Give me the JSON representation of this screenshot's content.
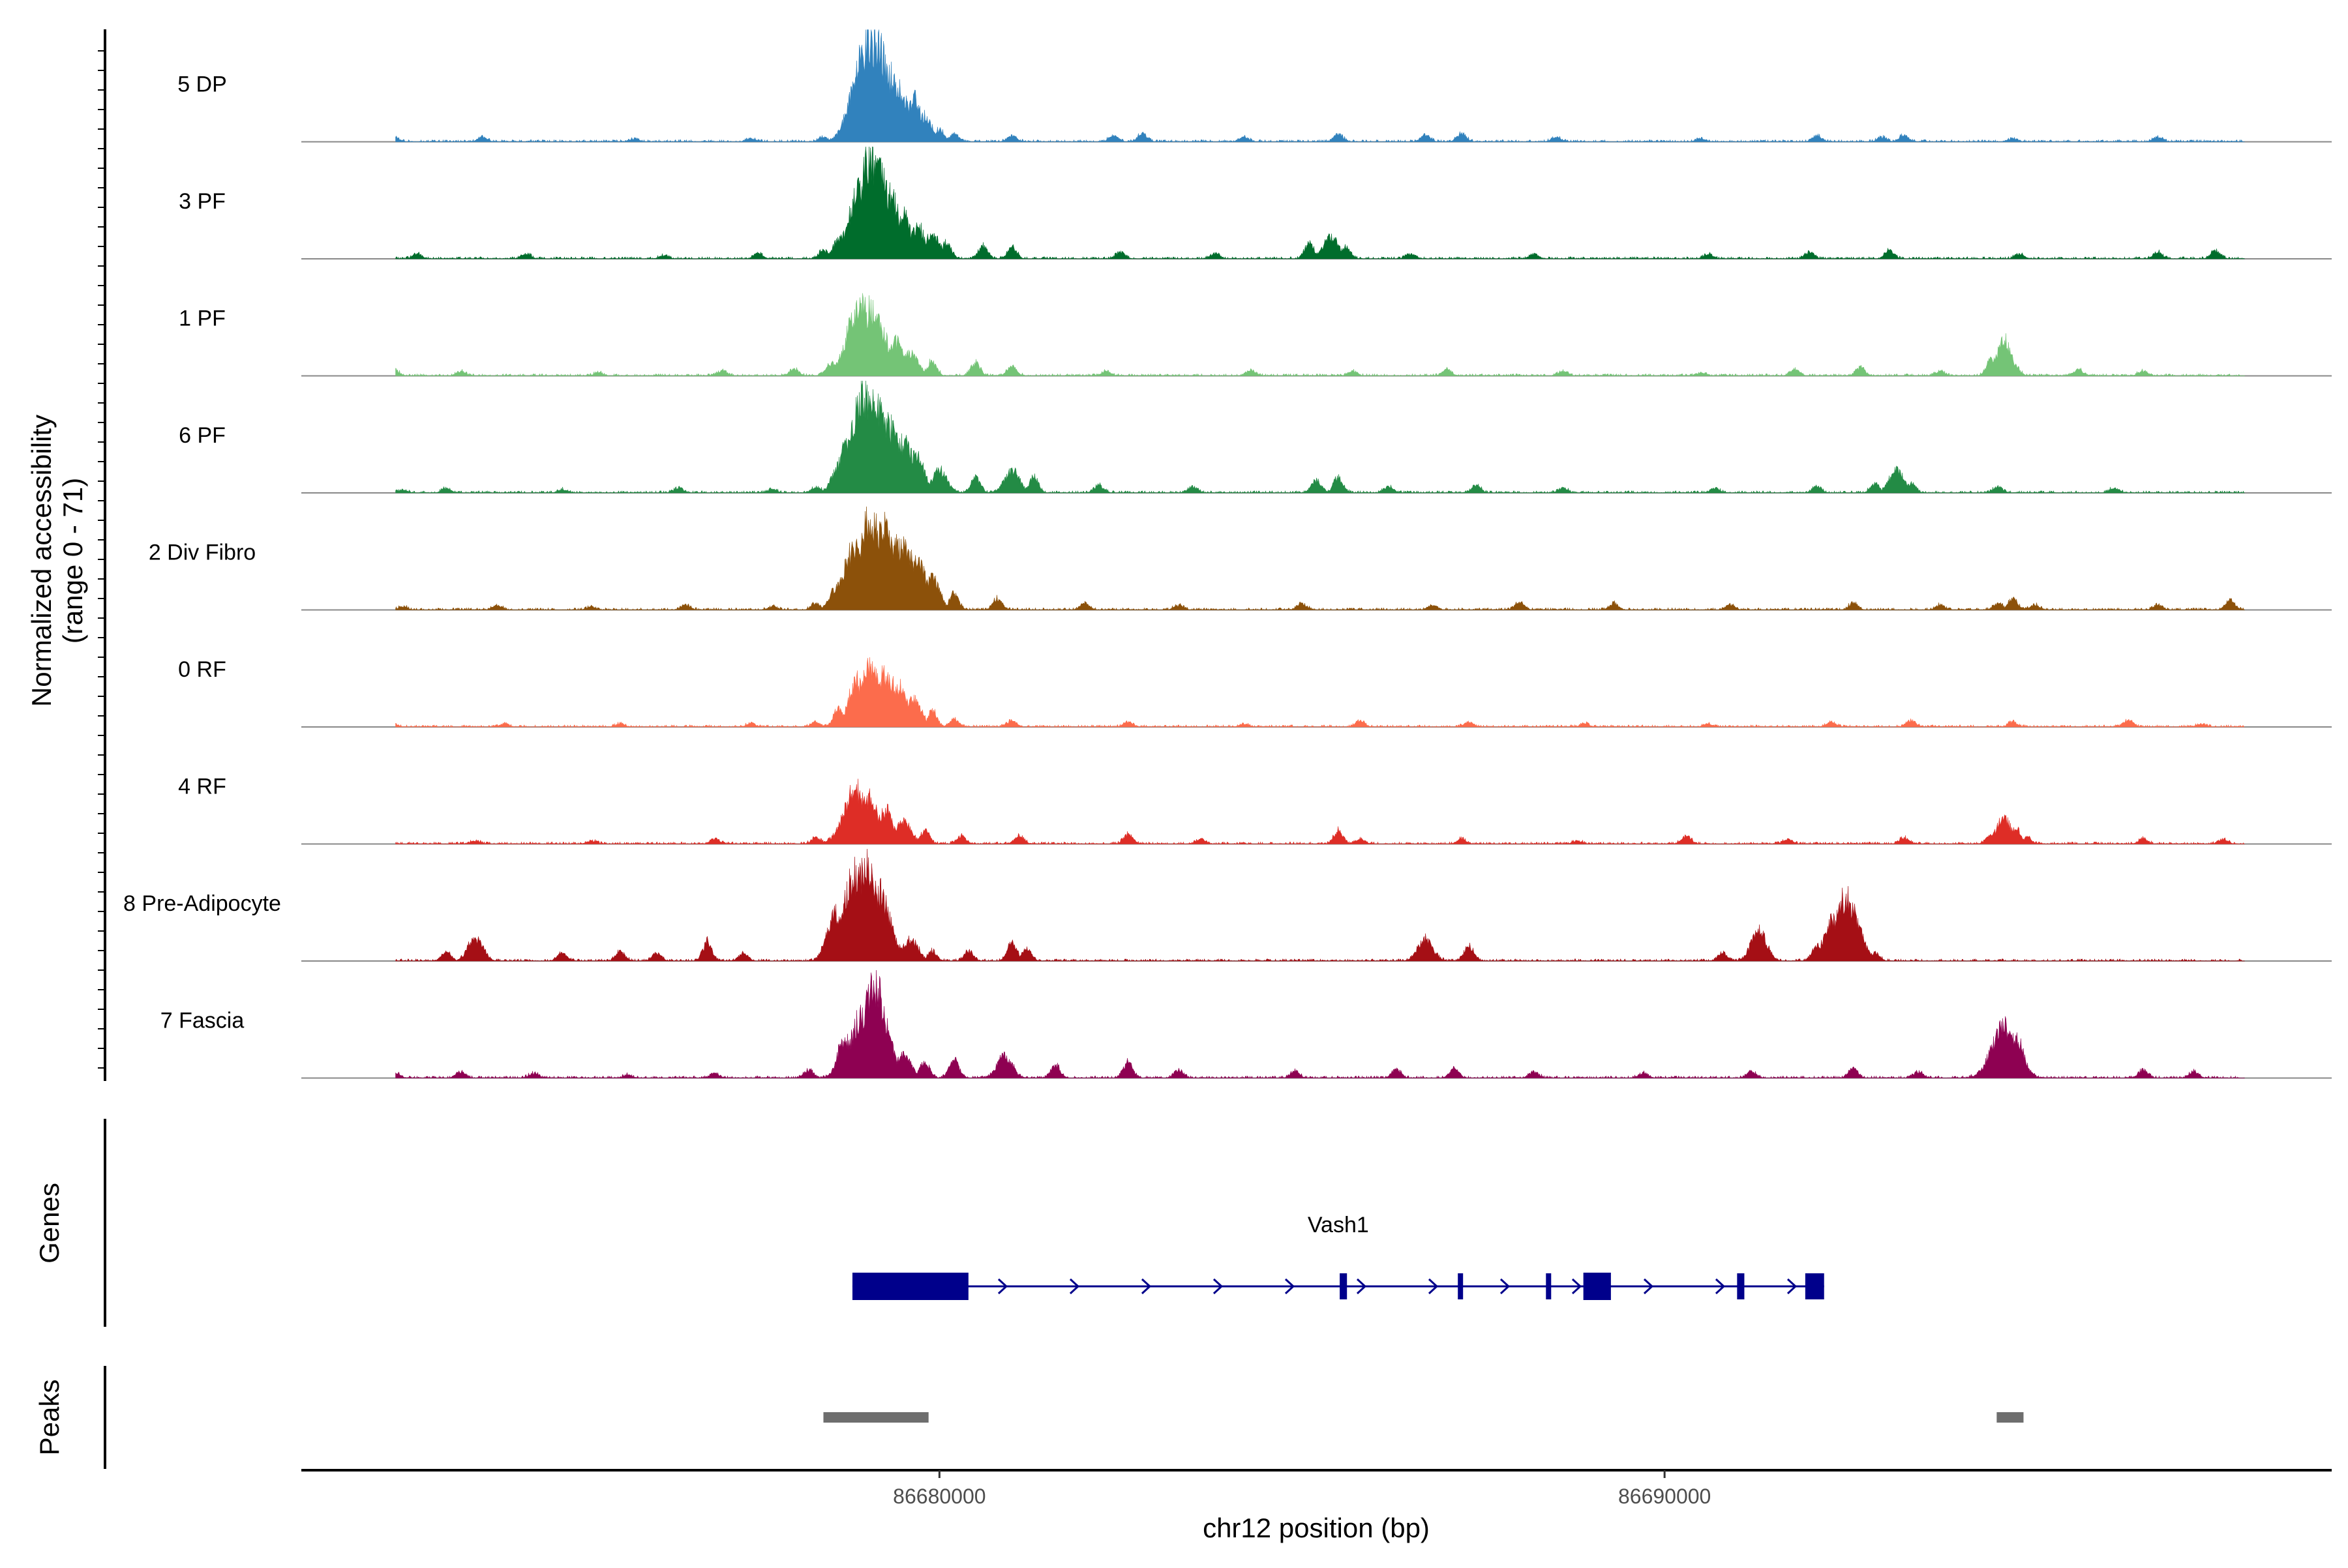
{
  "chart_data": {
    "type": "area",
    "title": "",
    "ylabel_line1": "Normalized accessibility",
    "ylabel_line2": "(range 0 - 71)",
    "ylim": [
      0,
      71
    ],
    "xlabel": "chr12 position (bp)",
    "xlim": [
      86671200,
      86699200
    ],
    "x_ticks": [
      86680000,
      86690000
    ],
    "x_tick_labels": [
      "86680000",
      "86690000"
    ],
    "series": [
      {
        "name": "5 DP",
        "color": "#3182bd",
        "points": [
          [
            86672500,
            2
          ],
          [
            86673700,
            3
          ],
          [
            86675800,
            2
          ],
          [
            86677400,
            2
          ],
          [
            86678400,
            3
          ],
          [
            86678700,
            10
          ],
          [
            86678850,
            30
          ],
          [
            86678950,
            55
          ],
          [
            86679050,
            66
          ],
          [
            86679150,
            60
          ],
          [
            86679300,
            42
          ],
          [
            86679400,
            35
          ],
          [
            86679550,
            22
          ],
          [
            86679650,
            27
          ],
          [
            86679800,
            16
          ],
          [
            86680000,
            8
          ],
          [
            86680200,
            5
          ],
          [
            86681000,
            4
          ],
          [
            86682400,
            4
          ],
          [
            86682800,
            5
          ],
          [
            86684200,
            3
          ],
          [
            86685500,
            5
          ],
          [
            86686700,
            4
          ],
          [
            86687200,
            5
          ],
          [
            86688500,
            3
          ],
          [
            86690500,
            2
          ],
          [
            86692100,
            4
          ],
          [
            86693000,
            3
          ],
          [
            86693300,
            4
          ],
          [
            86694800,
            2
          ],
          [
            86696800,
            3
          ]
        ]
      },
      {
        "name": "3 PF",
        "color": "#006d2c",
        "points": [
          [
            86672800,
            3
          ],
          [
            86674300,
            3
          ],
          [
            86676200,
            2
          ],
          [
            86677500,
            3
          ],
          [
            86678400,
            5
          ],
          [
            86678650,
            14
          ],
          [
            86678800,
            30
          ],
          [
            86678950,
            50
          ],
          [
            86679050,
            65
          ],
          [
            86679150,
            55
          ],
          [
            86679300,
            40
          ],
          [
            86679500,
            28
          ],
          [
            86679700,
            20
          ],
          [
            86679900,
            15
          ],
          [
            86680100,
            10
          ],
          [
            86680600,
            8
          ],
          [
            86681000,
            7
          ],
          [
            86682500,
            4
          ],
          [
            86683800,
            3
          ],
          [
            86685100,
            10
          ],
          [
            86685400,
            14
          ],
          [
            86685600,
            8
          ],
          [
            86686500,
            3
          ],
          [
            86688200,
            3
          ],
          [
            86690600,
            3
          ],
          [
            86692000,
            4
          ],
          [
            86693100,
            5
          ],
          [
            86694900,
            3
          ],
          [
            86696800,
            4
          ],
          [
            86697600,
            5
          ]
        ]
      },
      {
        "name": "1 PF",
        "color": "#74c476",
        "points": [
          [
            86672500,
            3
          ],
          [
            86673400,
            3
          ],
          [
            86675300,
            2
          ],
          [
            86677000,
            3
          ],
          [
            86678000,
            4
          ],
          [
            86678500,
            8
          ],
          [
            86678750,
            22
          ],
          [
            86678900,
            46
          ],
          [
            86679050,
            42
          ],
          [
            86679200,
            30
          ],
          [
            86679400,
            22
          ],
          [
            86679600,
            15
          ],
          [
            86679900,
            9
          ],
          [
            86680500,
            8
          ],
          [
            86681000,
            6
          ],
          [
            86682300,
            3
          ],
          [
            86684300,
            3
          ],
          [
            86685700,
            3
          ],
          [
            86687000,
            4
          ],
          [
            86688600,
            3
          ],
          [
            86690500,
            2
          ],
          [
            86691800,
            4
          ],
          [
            86692700,
            5
          ],
          [
            86693800,
            3
          ],
          [
            86694500,
            10
          ],
          [
            86694680,
            22
          ],
          [
            86694820,
            8
          ],
          [
            86695700,
            4
          ],
          [
            86696600,
            3
          ]
        ]
      },
      {
        "name": "6 PF",
        "color": "#238b45",
        "points": [
          [
            86672600,
            2
          ],
          [
            86673200,
            3
          ],
          [
            86674800,
            2
          ],
          [
            86676400,
            3
          ],
          [
            86677700,
            2
          ],
          [
            86678300,
            4
          ],
          [
            86678550,
            12
          ],
          [
            86678800,
            35
          ],
          [
            86678950,
            60
          ],
          [
            86679100,
            58
          ],
          [
            86679300,
            42
          ],
          [
            86679500,
            32
          ],
          [
            86679700,
            22
          ],
          [
            86680000,
            14
          ],
          [
            86680500,
            10
          ],
          [
            86681000,
            14
          ],
          [
            86681300,
            10
          ],
          [
            86682200,
            5
          ],
          [
            86683500,
            4
          ],
          [
            86685200,
            8
          ],
          [
            86685500,
            10
          ],
          [
            86686200,
            4
          ],
          [
            86687400,
            5
          ],
          [
            86688600,
            3
          ],
          [
            86690700,
            3
          ],
          [
            86692100,
            4
          ],
          [
            86692900,
            6
          ],
          [
            86693200,
            14
          ],
          [
            86693400,
            6
          ],
          [
            86694600,
            4
          ],
          [
            86696200,
            3
          ]
        ]
      },
      {
        "name": "2 Div Fibro",
        "color": "#8c510a",
        "points": [
          [
            86672600,
            2
          ],
          [
            86673900,
            3
          ],
          [
            86675200,
            2
          ],
          [
            86676500,
            3
          ],
          [
            86677700,
            2
          ],
          [
            86678300,
            4
          ],
          [
            86678600,
            15
          ],
          [
            86678850,
            40
          ],
          [
            86679050,
            57
          ],
          [
            86679250,
            55
          ],
          [
            86679450,
            42
          ],
          [
            86679650,
            32
          ],
          [
            86679900,
            20
          ],
          [
            86680200,
            10
          ],
          [
            86680800,
            7
          ],
          [
            86682000,
            4
          ],
          [
            86683300,
            3
          ],
          [
            86685000,
            4
          ],
          [
            86686800,
            3
          ],
          [
            86688000,
            5
          ],
          [
            86689300,
            4
          ],
          [
            86690900,
            3
          ],
          [
            86692600,
            4
          ],
          [
            86693800,
            3
          ],
          [
            86694600,
            4
          ],
          [
            86694800,
            7
          ],
          [
            86695100,
            3
          ],
          [
            86696800,
            3
          ],
          [
            86697800,
            6
          ]
        ]
      },
      {
        "name": "0 RF",
        "color": "#fc6c4c",
        "points": [
          [
            86672500,
            1
          ],
          [
            86674000,
            2
          ],
          [
            86675600,
            2
          ],
          [
            86677400,
            2
          ],
          [
            86678300,
            3
          ],
          [
            86678600,
            12
          ],
          [
            86678850,
            30
          ],
          [
            86679050,
            37
          ],
          [
            86679250,
            33
          ],
          [
            86679450,
            26
          ],
          [
            86679650,
            18
          ],
          [
            86679900,
            10
          ],
          [
            86680200,
            5
          ],
          [
            86681000,
            4
          ],
          [
            86682600,
            3
          ],
          [
            86684200,
            2
          ],
          [
            86685800,
            4
          ],
          [
            86687300,
            3
          ],
          [
            86688900,
            2
          ],
          [
            86690600,
            2
          ],
          [
            86692300,
            3
          ],
          [
            86693400,
            4
          ],
          [
            86694800,
            3
          ],
          [
            86696400,
            4
          ],
          [
            86697400,
            2
          ]
        ]
      },
      {
        "name": "4 RF",
        "color": "#de2d26",
        "points": [
          [
            86673600,
            2
          ],
          [
            86675200,
            2
          ],
          [
            86676900,
            3
          ],
          [
            86678300,
            4
          ],
          [
            86678650,
            12
          ],
          [
            86678850,
            34
          ],
          [
            86679050,
            30
          ],
          [
            86679250,
            22
          ],
          [
            86679500,
            15
          ],
          [
            86679800,
            9
          ],
          [
            86680300,
            5
          ],
          [
            86681100,
            5
          ],
          [
            86682600,
            6
          ],
          [
            86683600,
            3
          ],
          [
            86685500,
            8
          ],
          [
            86685800,
            3
          ],
          [
            86687200,
            3
          ],
          [
            86688800,
            2
          ],
          [
            86690300,
            5
          ],
          [
            86691700,
            3
          ],
          [
            86693300,
            4
          ],
          [
            86694500,
            6
          ],
          [
            86694680,
            16
          ],
          [
            86694850,
            10
          ],
          [
            86695000,
            4
          ],
          [
            86696600,
            3
          ],
          [
            86697700,
            3
          ]
        ]
      },
      {
        "name": "8 Pre-Adipocyte",
        "color": "#a50f15",
        "points": [
          [
            86673200,
            6
          ],
          [
            86673600,
            14
          ],
          [
            86674800,
            5
          ],
          [
            86675600,
            6
          ],
          [
            86676100,
            5
          ],
          [
            86676800,
            12
          ],
          [
            86677300,
            5
          ],
          [
            86678550,
            30
          ],
          [
            86678700,
            15
          ],
          [
            86678850,
            55
          ],
          [
            86679000,
            60
          ],
          [
            86679150,
            45
          ],
          [
            86679300,
            20
          ],
          [
            86679600,
            14
          ],
          [
            86679900,
            6
          ],
          [
            86680400,
            6
          ],
          [
            86681000,
            12
          ],
          [
            86681200,
            8
          ],
          [
            86686700,
            14
          ],
          [
            86687300,
            10
          ],
          [
            86690800,
            5
          ],
          [
            86691300,
            20
          ],
          [
            86692100,
            10
          ],
          [
            86692300,
            25
          ],
          [
            86692500,
            40
          ],
          [
            86692650,
            20
          ],
          [
            86692900,
            5
          ]
        ]
      },
      {
        "name": "7 Fascia",
        "color": "#8e0152",
        "points": [
          [
            86672500,
            3
          ],
          [
            86673400,
            4
          ],
          [
            86674400,
            3
          ],
          [
            86675700,
            2
          ],
          [
            86676900,
            3
          ],
          [
            86678200,
            5
          ],
          [
            86678700,
            25
          ],
          [
            86678950,
            41
          ],
          [
            86679100,
            60
          ],
          [
            86679250,
            25
          ],
          [
            86679500,
            15
          ],
          [
            86679800,
            10
          ],
          [
            86680200,
            12
          ],
          [
            86680900,
            14
          ],
          [
            86681600,
            8
          ],
          [
            86682600,
            10
          ],
          [
            86683300,
            5
          ],
          [
            86684900,
            4
          ],
          [
            86686300,
            5
          ],
          [
            86687100,
            6
          ],
          [
            86688200,
            4
          ],
          [
            86689700,
            3
          ],
          [
            86691200,
            4
          ],
          [
            86692600,
            6
          ],
          [
            86693500,
            4
          ],
          [
            86694500,
            6
          ],
          [
            86694680,
            33
          ],
          [
            86694850,
            25
          ],
          [
            86695000,
            6
          ],
          [
            86696600,
            5
          ],
          [
            86697300,
            4
          ]
        ]
      }
    ],
    "genes": [
      {
        "name": "Vash1",
        "strand": "+",
        "start": 86678800,
        "end": 86692200,
        "exons": [
          [
            86678800,
            86680400
          ],
          [
            86685520,
            86685620
          ],
          [
            86687150,
            86687220
          ],
          [
            86688370,
            86688430
          ],
          [
            86688880,
            86689260
          ],
          [
            86691000,
            86691100
          ],
          [
            86691940,
            86692200
          ]
        ]
      }
    ],
    "peaks_label": "Peaks",
    "genes_label": "Genes",
    "peaks": [
      [
        86678400,
        86679850
      ],
      [
        86694580,
        86694950
      ]
    ]
  }
}
